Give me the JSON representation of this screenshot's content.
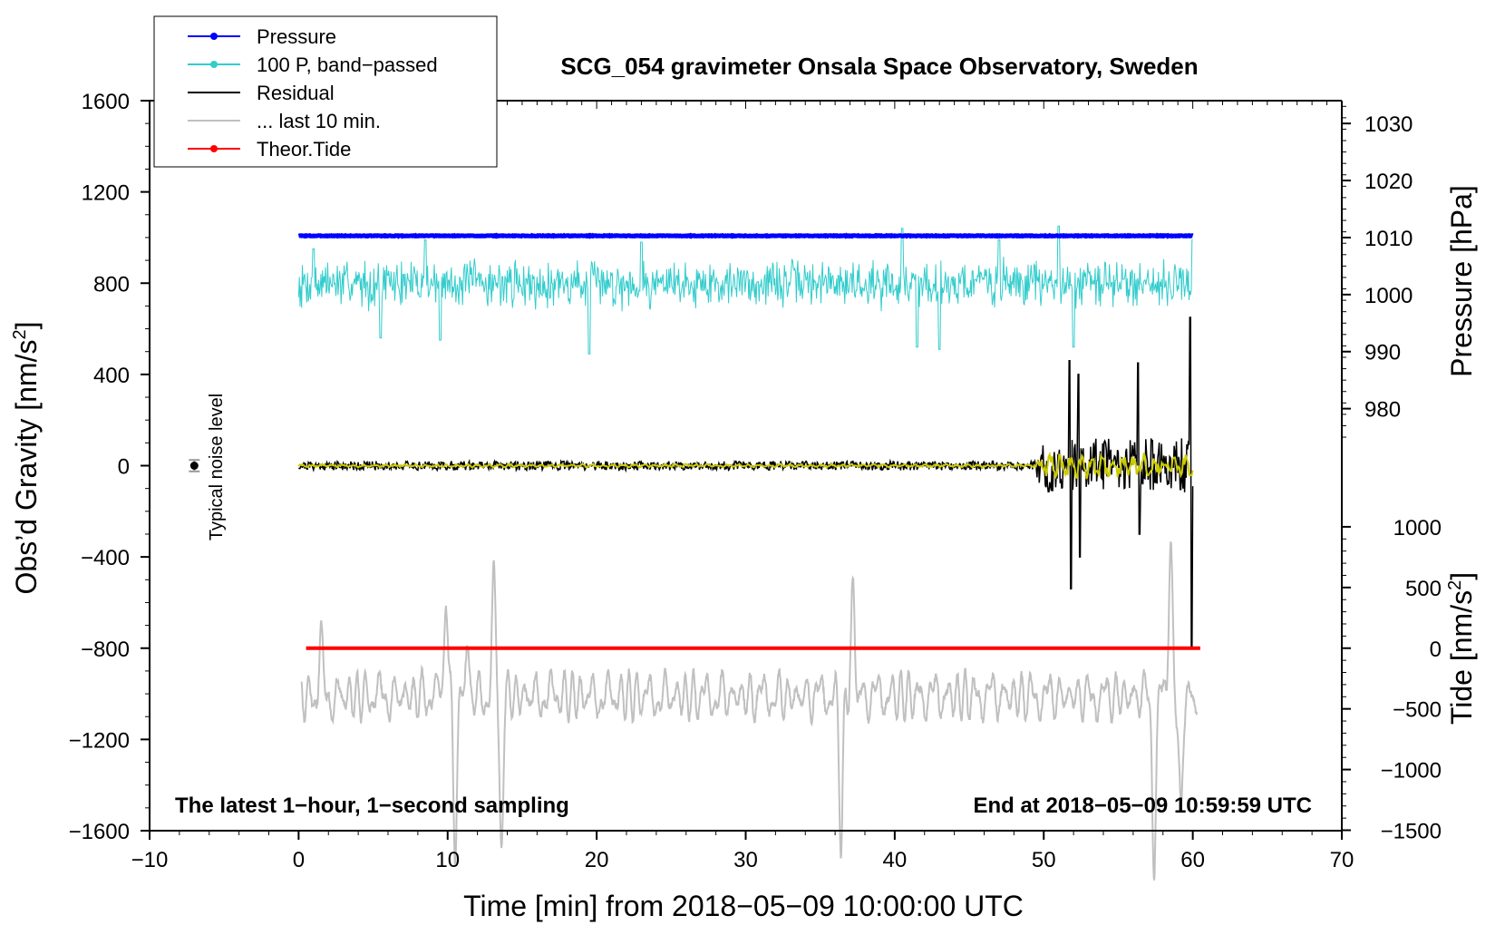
{
  "chart_data": {
    "type": "line",
    "title": "SCG_054 gravimeter Onsala Space Observatory, Sweden",
    "xlabel": "Time [min] from 2018−05−09 10:00:00 UTC",
    "ylabel_left": "Obs’d Gravity [nm/s",
    "ylabel_left_sup": "2",
    "ylabel_left_end": "]",
    "ylabel_right_pressure": "Pressure [hPa]",
    "ylabel_right_tide": "Tide [nm/s",
    "ylabel_right_tide_sup": "2",
    "ylabel_right_tide_end": "]",
    "xlim": [
      -10,
      70
    ],
    "ylim": [
      -1600,
      1600
    ],
    "x_ticks": [
      -10,
      0,
      10,
      20,
      30,
      40,
      50,
      60,
      70
    ],
    "x_tick_labels": [
      "−10",
      "0",
      "10",
      "20",
      "30",
      "40",
      "50",
      "60",
      "70"
    ],
    "y_ticks": [
      1600,
      1200,
      800,
      400,
      0,
      -400,
      -800,
      -1200,
      -1600
    ],
    "y_tick_labels": [
      "1600",
      "1200",
      "800",
      "400",
      "0",
      "−400",
      "−800",
      "−1200",
      "−1600"
    ],
    "pressure_ticks": [
      980,
      990,
      1000,
      1010,
      1020,
      1030
    ],
    "pressure_tick_labels": [
      "980",
      "990",
      "1000",
      "1010",
      "1020",
      "1030"
    ],
    "pressure_mapping": {
      "hpa_a": 1010,
      "grav_a": 1000,
      "hpa_b": 1030,
      "grav_b": 1500
    },
    "tide_ticks": [
      1000,
      500,
      0,
      -500,
      -1000,
      -1500
    ],
    "tide_tick_labels": [
      "1000",
      "500",
      "0",
      "−500",
      "−1000",
      "−1500"
    ],
    "tide_mapping": {
      "tide_a": 0,
      "grav_a": -800,
      "tide_b": 1000,
      "grav_b": -268
    },
    "note_left": "The latest 1−hour, 1−second sampling",
    "note_right": "End at 2018−05−09 10:59:59 UTC",
    "noise_label": "Typical noise level",
    "noise_marker": {
      "x": -7,
      "y": 0,
      "err": 25
    },
    "legend": [
      {
        "label": "Pressure",
        "color": "#0000ff",
        "marker": true
      },
      {
        "label": "100 P, band−passed",
        "color": "#33cccc",
        "marker": true
      },
      {
        "label": "Residual",
        "color": "#000000",
        "marker": false
      },
      {
        "label": "... last 10 min.",
        "color": "#c0c0c0",
        "marker": false
      },
      {
        "label": "Theor.Tide",
        "color": "#ff0000",
        "marker": true
      }
    ],
    "series": [
      {
        "name": "Pressure",
        "color": "#0000ff",
        "x_range": [
          0,
          60
        ],
        "level_hpa": 1010.3,
        "gravity_level": 1058,
        "noise_amplitude": 3
      },
      {
        "name": "100 P, band−passed",
        "color": "#33cccc",
        "x_range": [
          0,
          60
        ],
        "center": 800,
        "amplitude": 90,
        "peaks": [
          [
            1,
            950
          ],
          [
            5.5,
            560
          ],
          [
            8.5,
            990
          ],
          [
            9.5,
            550
          ],
          [
            19.5,
            490
          ],
          [
            23,
            980
          ],
          [
            40.5,
            1040
          ],
          [
            41.5,
            520
          ],
          [
            43,
            510
          ],
          [
            47,
            990
          ],
          [
            51,
            1050
          ],
          [
            52,
            520
          ],
          [
            60,
            990
          ]
        ]
      },
      {
        "name": "Residual",
        "color": "#000000",
        "x_range": [
          0,
          60
        ],
        "center": 0,
        "quiet_amplitude": 20,
        "burst_events": [
          [
            51.7,
            460,
            -540
          ],
          [
            52.3,
            400,
            -400
          ],
          [
            56.3,
            450,
            -300
          ],
          [
            59.8,
            650,
            -800
          ]
        ]
      },
      {
        "name": "Residual (smoothed)",
        "color": "#cccc00",
        "x_range": [
          0,
          60
        ],
        "center": 0,
        "amplitude": 30
      },
      {
        "name": "... last 10 min.",
        "color": "#c0c0c0",
        "x_range": [
          0.2,
          60.3
        ],
        "center": -1010,
        "extremes": [
          [
            1.5,
            -780
          ],
          [
            9.9,
            -530
          ],
          [
            10.5,
            -1680
          ],
          [
            11.3,
            -800
          ],
          [
            13.1,
            -520
          ],
          [
            13.6,
            -1640
          ],
          [
            36.4,
            -1620
          ],
          [
            37.2,
            -540
          ],
          [
            57.4,
            -1720
          ],
          [
            58.5,
            -350
          ],
          [
            59.2,
            -1550
          ]
        ]
      },
      {
        "name": "Theor.Tide",
        "color": "#ff0000",
        "x": [
          0.5,
          60.5
        ],
        "tide_values": [
          0,
          0
        ]
      }
    ]
  }
}
